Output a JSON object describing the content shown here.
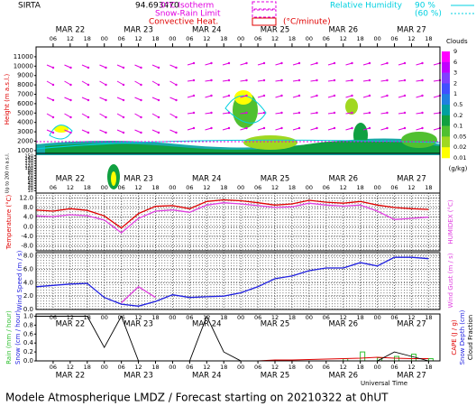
{
  "header": {
    "site": "SIRTA",
    "coords": "94.693470",
    "isotherm": "0°C Isotherm",
    "snow_rain": "Snow-Rain Limit",
    "convective": "Convective Heat.",
    "convective_unit": "(°C/minute)",
    "rh": "Relative Humidity",
    "rh_high": "90 %",
    "rh_low": "(60 %)"
  },
  "footer": "Modele Atmospherique LMDZ / Forecast starting on 20210322 at 0hUT",
  "x_label": "Universal Time",
  "time": {
    "xlim": [
      0,
      142
    ],
    "xticks": [
      {
        "value": 6,
        "label": "06"
      },
      12,
      18,
      {
        "value": 24,
        "label": "00"
      },
      {
        "value": 30,
        "label": "06"
      },
      {
        "value": 36,
        "label": "12"
      },
      {
        "value": 42,
        "label": "18"
      },
      {
        "value": 48,
        "label": "00"
      },
      {
        "value": 54,
        "label": "06"
      },
      {
        "value": 60,
        "label": "12"
      },
      {
        "value": 66,
        "label": "18"
      },
      {
        "value": 72,
        "label": "00"
      },
      {
        "value": 78,
        "label": "06"
      },
      {
        "value": 84,
        "label": "12"
      },
      {
        "value": 90,
        "label": "18"
      },
      {
        "value": 96,
        "label": "00"
      },
      {
        "value": 102,
        "label": "06"
      },
      {
        "value": 108,
        "label": "12"
      },
      {
        "value": 114,
        "label": "18"
      },
      {
        "value": 120,
        "label": "00"
      },
      {
        "value": 126,
        "label": "06"
      },
      {
        "value": 132,
        "label": "12"
      },
      {
        "value": 138,
        "label": "18"
      }
    ],
    "date_ticks": [
      {
        "value": 12,
        "label": "MAR 22"
      },
      {
        "value": 36,
        "label": "MAR 23"
      },
      {
        "value": 60,
        "label": "MAR 24"
      },
      {
        "value": 84,
        "label": "MAR 25"
      },
      {
        "value": 108,
        "label": "MAR 26"
      },
      {
        "value": 132,
        "label": "MAR 27"
      }
    ]
  },
  "chart_data": [
    {
      "type": "contour",
      "ylabel": "Height (m a.s.l.)",
      "ylabel_low": "Up to 200 m a.s.l.",
      "ylim": [
        700,
        12050
      ],
      "yticks": [
        {
          "value": 11000,
          "label": "11000"
        },
        {
          "value": 10000,
          "label": "10000"
        },
        9000,
        8000,
        7000,
        6000,
        5000,
        4000,
        3000,
        2000,
        1000
      ],
      "ylim_low": [
        0,
        160
      ],
      "yticks_low": [
        150,
        140,
        130,
        120,
        110,
        100,
        90,
        80,
        70,
        60,
        50,
        40,
        30,
        20,
        10
      ],
      "colorbar": {
        "title": "Clouds",
        "unit": "(g/kg)",
        "ticks": [
          9,
          6,
          3,
          2,
          1,
          0.5,
          0.2,
          0.1,
          0.05,
          0.02,
          0.01
        ],
        "colors": [
          "#ff00ff",
          "#c000ff",
          "#8040ff",
          "#4050ff",
          "#2080e0",
          "#00a0a0",
          "#10a040",
          "#50c030",
          "#a0d820",
          "#ffff00"
        ]
      }
    },
    {
      "type": "line",
      "ylim": [
        -10,
        14
      ],
      "yticks": [
        {
          "value": 12,
          "label": "12.0"
        },
        {
          "value": 8,
          "label": "8.0"
        },
        {
          "value": 4,
          "label": "4.0"
        },
        {
          "value": 0,
          "label": "0.0"
        },
        {
          "value": -4,
          "label": "-4.0"
        },
        {
          "value": -8,
          "label": "-8.0"
        }
      ],
      "x": [
        0,
        6,
        12,
        18,
        24,
        30,
        36,
        42,
        48,
        54,
        60,
        66,
        72,
        78,
        84,
        90,
        96,
        102,
        108,
        114,
        120,
        126,
        132,
        138
      ],
      "series": [
        {
          "name": "Temperature (°C)",
          "color": "#e00000",
          "values": [
            6.9,
            6.5,
            7.5,
            6.8,
            4.5,
            -0.5,
            5.5,
            8.5,
            8.8,
            7.5,
            10.5,
            11.2,
            10.8,
            10.0,
            9.0,
            9.5,
            11.0,
            10.2,
            9.8,
            10.5,
            9.0,
            8.0,
            7.5,
            7.2
          ]
        },
        {
          "name": "HUMIDEX (°C)",
          "color": "#e040e0",
          "values": [
            4.5,
            4.2,
            5.0,
            4.6,
            2.8,
            -2.5,
            3.5,
            6.5,
            7.0,
            6.0,
            9.0,
            10.0,
            9.5,
            8.8,
            8.0,
            8.3,
            9.8,
            9.0,
            8.6,
            9.0,
            6.5,
            3.0,
            3.5,
            4.0
          ]
        }
      ]
    },
    {
      "type": "line",
      "ylim": [
        0,
        8.5
      ],
      "yticks": [
        {
          "value": 8,
          "label": "8.0"
        },
        {
          "value": 6,
          "label": "6.0"
        },
        {
          "value": 4,
          "label": "4.0"
        },
        {
          "value": 2,
          "label": "2.0"
        },
        {
          "value": 0,
          "label": "0.0"
        }
      ],
      "x": [
        0,
        6,
        12,
        18,
        24,
        30,
        36,
        42,
        48,
        54,
        60,
        66,
        72,
        78,
        84,
        90,
        96,
        102,
        108,
        114,
        120,
        126,
        132,
        138
      ],
      "series": [
        {
          "name": "Wind Gust (m / s)",
          "color": "#e040e0",
          "axis_side": "right",
          "values": [
            null,
            null,
            null,
            null,
            null,
            1.0,
            3.4,
            1.8,
            null,
            null,
            null,
            null,
            null,
            null,
            null,
            null,
            null,
            null,
            null,
            null,
            null,
            null,
            null,
            null
          ]
        },
        {
          "name": "Wind Speed (m / s)",
          "color": "#2020e0",
          "values": [
            3.4,
            3.6,
            3.8,
            3.9,
            1.8,
            0.8,
            0.5,
            1.2,
            2.2,
            1.8,
            1.9,
            2.0,
            2.5,
            3.4,
            4.6,
            5.0,
            5.8,
            6.2,
            6.2,
            7.0,
            6.5,
            7.8,
            7.8,
            7.6
          ]
        }
      ]
    },
    {
      "type": "mixed",
      "ylim": [
        0,
        1.05
      ],
      "yticks": [
        {
          "value": 1,
          "label": "1.0"
        },
        {
          "value": 0.8,
          "label": "0.8"
        },
        {
          "value": 0.6,
          "label": "0.6"
        },
        {
          "value": 0.4,
          "label": "0.4"
        },
        {
          "value": 0.2,
          "label": "0.2"
        },
        {
          "value": 0,
          "label": "0.0"
        }
      ],
      "x": [
        0,
        6,
        12,
        18,
        24,
        30,
        36,
        42,
        48,
        54,
        60,
        66,
        72,
        78,
        84,
        90,
        96,
        102,
        108,
        114,
        120,
        126,
        132,
        138
      ],
      "snow_label": "Snow (cm / hour)",
      "snow_depth_label": "Snow Depth (cm)",
      "series": [
        {
          "name": "Rain (mm / hour)",
          "color": "#30c030",
          "kind": "bar",
          "values": [
            0,
            0,
            0,
            0,
            0,
            0,
            0,
            0,
            0,
            0,
            0,
            0,
            0,
            0,
            0,
            0,
            0,
            0,
            0.05,
            0.2,
            0.07,
            0.1,
            0.15,
            0.05
          ]
        },
        {
          "name": "CAPE (J / g)",
          "color": "#e00000",
          "kind": "line",
          "side": "right",
          "values": [
            0,
            0,
            0,
            0,
            0,
            0,
            0,
            0,
            0,
            0,
            0,
            0,
            0,
            0,
            0.02,
            0.02,
            0.03,
            0.04,
            0.05,
            0.06,
            0.08,
            0.06,
            0.05,
            0.05
          ]
        },
        {
          "name": "Cloud Fraction",
          "color": "#000000",
          "kind": "line",
          "side": "right",
          "values": [
            1,
            1,
            1,
            1,
            0.3,
            1,
            0,
            0,
            0,
            0,
            1,
            0.2,
            0,
            0,
            0,
            0,
            0,
            0,
            0,
            0,
            0,
            0.2,
            0.1,
            0
          ]
        }
      ]
    }
  ]
}
